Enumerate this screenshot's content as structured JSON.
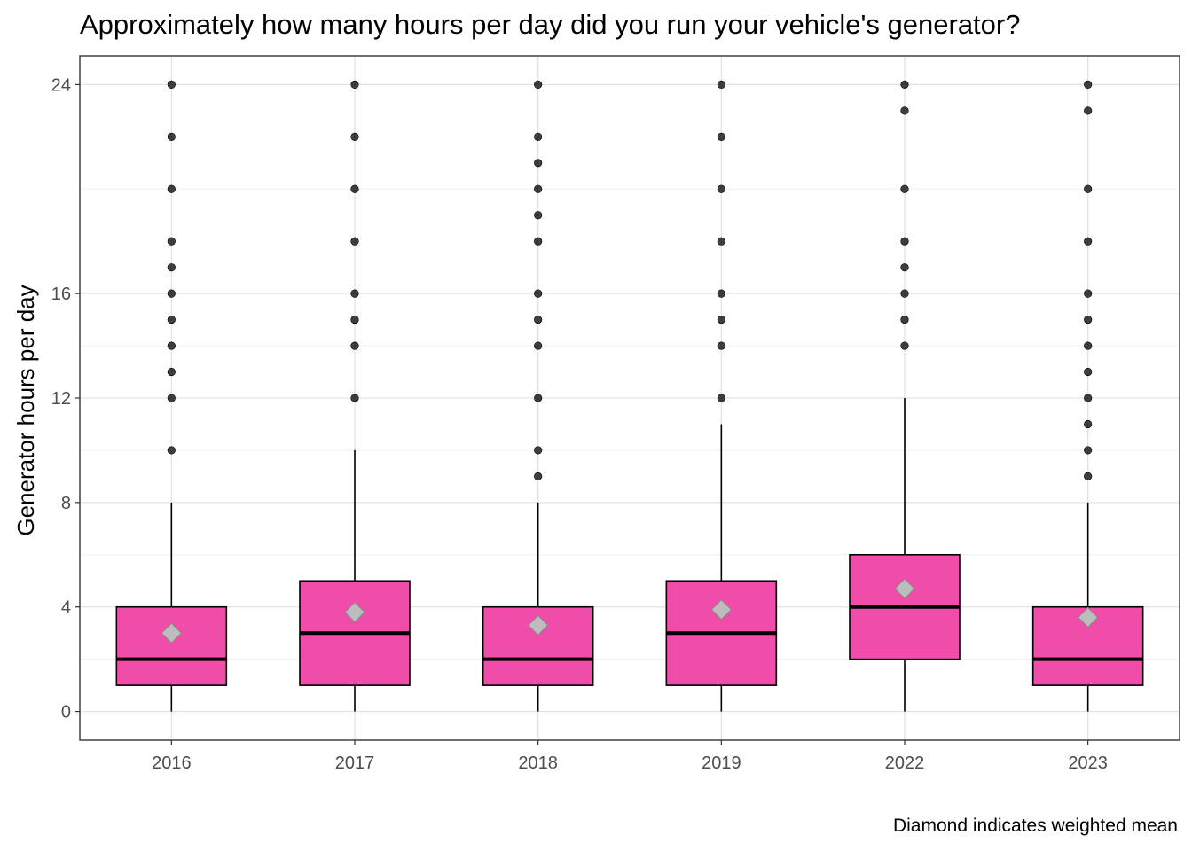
{
  "chart_data": {
    "type": "box",
    "title": "Approximately how many hours per day did you run your vehicle's generator?",
    "ylabel": "Generator hours per day",
    "xlabel": "",
    "caption": "Diamond indicates weighted mean",
    "ylim": [
      -1.1,
      25.1
    ],
    "yticks": [
      0,
      4,
      8,
      12,
      16,
      24
    ],
    "y_minor_gridlines": [
      2,
      6,
      10,
      14,
      20
    ],
    "grid": true,
    "legend": "none",
    "colors": {
      "box_fill": "#F04CA9",
      "mean_diamond": "#BDBDBD",
      "outlier": "#000000"
    },
    "categories": [
      "2016",
      "2017",
      "2018",
      "2019",
      "2022",
      "2023"
    ],
    "boxes": [
      {
        "category": "2016",
        "whisker_low": 0,
        "q1": 1,
        "median": 2,
        "q3": 4,
        "whisker_high": 8,
        "mean": 3.0,
        "outliers": [
          10,
          12,
          13,
          14,
          15,
          16,
          17,
          18,
          20,
          22,
          24
        ]
      },
      {
        "category": "2017",
        "whisker_low": 0,
        "q1": 1,
        "median": 3,
        "q3": 5,
        "whisker_high": 10,
        "mean": 3.8,
        "outliers": [
          12,
          14,
          15,
          16,
          18,
          20,
          22,
          24
        ]
      },
      {
        "category": "2018",
        "whisker_low": 0,
        "q1": 1,
        "median": 2,
        "q3": 4,
        "whisker_high": 8,
        "mean": 3.3,
        "outliers": [
          9,
          10,
          12,
          14,
          15,
          16,
          18,
          19,
          20,
          21,
          22,
          24
        ]
      },
      {
        "category": "2019",
        "whisker_low": 0,
        "q1": 1,
        "median": 3,
        "q3": 5,
        "whisker_high": 11,
        "mean": 3.9,
        "outliers": [
          12,
          14,
          15,
          16,
          18,
          20,
          22,
          24
        ]
      },
      {
        "category": "2022",
        "whisker_low": 0,
        "q1": 2,
        "median": 4,
        "q3": 6,
        "whisker_high": 12,
        "mean": 4.7,
        "outliers": [
          14,
          15,
          16,
          17,
          18,
          20,
          23,
          24
        ]
      },
      {
        "category": "2023",
        "whisker_low": 0,
        "q1": 1,
        "median": 2,
        "q3": 4,
        "whisker_high": 8,
        "mean": 3.6,
        "outliers": [
          9,
          10,
          11,
          12,
          13,
          14,
          15,
          16,
          18,
          20,
          23,
          24
        ]
      }
    ]
  }
}
